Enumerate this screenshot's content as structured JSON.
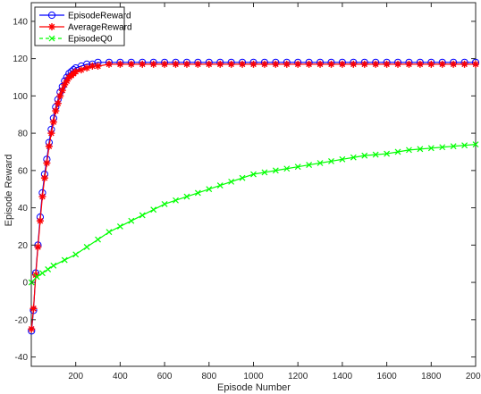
{
  "chart_data": {
    "type": "line",
    "title": "",
    "xlabel": "Episode Number",
    "ylabel": "Episode Reward",
    "xlim": [
      0,
      2000
    ],
    "ylim": [
      -45,
      150
    ],
    "xticks": [
      200,
      400,
      600,
      800,
      1000,
      1200,
      1400,
      1600,
      1800,
      2000
    ],
    "yticks": [
      -40,
      -20,
      0,
      20,
      40,
      60,
      80,
      100,
      120,
      140
    ],
    "grid": false,
    "legend_position": "top-left",
    "series": [
      {
        "name": "EpisodeReward",
        "color": "#0000ff",
        "marker": "circle",
        "x": [
          1,
          10,
          20,
          30,
          40,
          50,
          60,
          70,
          80,
          90,
          100,
          110,
          120,
          130,
          140,
          150,
          160,
          170,
          180,
          190,
          200,
          225,
          250,
          275,
          300,
          350,
          400,
          450,
          500,
          550,
          600,
          650,
          700,
          750,
          800,
          850,
          900,
          950,
          1000,
          1050,
          1100,
          1150,
          1200,
          1250,
          1300,
          1350,
          1400,
          1450,
          1500,
          1550,
          1600,
          1650,
          1700,
          1750,
          1800,
          1850,
          1900,
          1950,
          2000
        ],
        "y": [
          -26,
          -15,
          5,
          20,
          35,
          48,
          58,
          66,
          75,
          82,
          88,
          94,
          98,
          102,
          105,
          108,
          110,
          112,
          113,
          114,
          115,
          116,
          117,
          117,
          118,
          118,
          118,
          118,
          118,
          118,
          118,
          118,
          118,
          118,
          118,
          118,
          118,
          118,
          118,
          118,
          118,
          118,
          118,
          118,
          118,
          118,
          118,
          118,
          118,
          118,
          118,
          118,
          118,
          118,
          118,
          118,
          118,
          118,
          118
        ]
      },
      {
        "name": "AverageReward",
        "color": "#ff0000",
        "marker": "asterisk",
        "x": [
          1,
          10,
          20,
          30,
          40,
          50,
          60,
          70,
          80,
          90,
          100,
          110,
          120,
          130,
          140,
          150,
          160,
          170,
          180,
          190,
          200,
          225,
          250,
          275,
          300,
          350,
          400,
          450,
          500,
          550,
          600,
          650,
          700,
          750,
          800,
          850,
          900,
          950,
          1000,
          1050,
          1100,
          1150,
          1200,
          1250,
          1300,
          1350,
          1400,
          1450,
          1500,
          1550,
          1600,
          1650,
          1700,
          1750,
          1800,
          1850,
          1900,
          1950,
          2000
        ],
        "y": [
          -25,
          -14,
          4,
          19,
          33,
          46,
          56,
          64,
          73,
          80,
          86,
          92,
          96,
          100,
          103,
          106,
          108,
          110,
          111,
          112,
          113,
          114,
          115,
          116,
          116,
          117,
          117,
          117,
          117,
          117,
          117,
          117,
          117,
          117,
          117,
          117,
          117,
          117,
          117,
          117,
          117,
          117,
          117,
          117,
          117,
          117,
          117,
          117,
          117,
          117,
          117,
          117,
          117,
          117,
          117,
          117,
          117,
          117,
          117
        ]
      },
      {
        "name": "EpisodeQ0",
        "color": "#00ff00",
        "marker": "x",
        "x": [
          1,
          25,
          50,
          75,
          100,
          150,
          200,
          250,
          300,
          350,
          400,
          450,
          500,
          550,
          600,
          650,
          700,
          750,
          800,
          850,
          900,
          950,
          1000,
          1050,
          1100,
          1150,
          1200,
          1250,
          1300,
          1350,
          1400,
          1450,
          1500,
          1550,
          1600,
          1650,
          1700,
          1750,
          1800,
          1850,
          1900,
          1950,
          2000
        ],
        "y": [
          0,
          3,
          5,
          7,
          9,
          12,
          15,
          19,
          23,
          27,
          30,
          33,
          36,
          39,
          42,
          44,
          46,
          48,
          50,
          52,
          54,
          56,
          58,
          59,
          60,
          61,
          62,
          63,
          64,
          65,
          66,
          67,
          68,
          68.5,
          69,
          70,
          71,
          71.5,
          72,
          72.5,
          73,
          73.5,
          74
        ]
      }
    ]
  }
}
